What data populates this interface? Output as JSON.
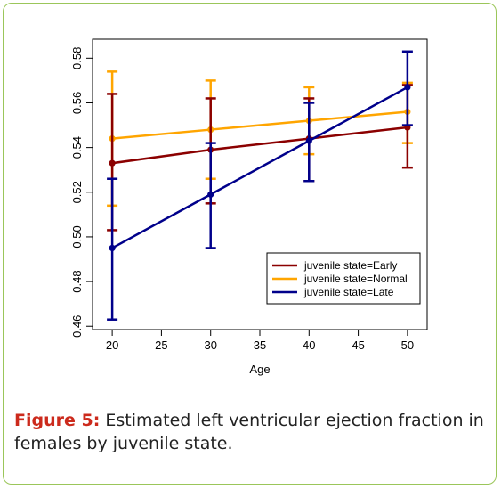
{
  "caption": {
    "label": "Figure 5:",
    "text": " Estimated left ventricular ejection fraction in females by juvenile state."
  },
  "chart_data": {
    "type": "line",
    "xlabel": "Age",
    "ylabel": "",
    "x": [
      20,
      30,
      40,
      50
    ],
    "xticks": [
      20,
      25,
      30,
      35,
      40,
      45,
      50
    ],
    "yticks": [
      0.46,
      0.48,
      0.5,
      0.52,
      0.54,
      0.56,
      0.58
    ],
    "ytick_labels": [
      "0.46",
      "0.48",
      "0.50",
      "0.52",
      "0.54",
      "0.56",
      "0.58"
    ],
    "xlim": [
      18,
      52
    ],
    "ylim": [
      0.4585,
      0.5885
    ],
    "error_bars": true,
    "grid": false,
    "legend_position": "bottom-right",
    "series": [
      {
        "name": "juvenile state=Normal",
        "color": "#FFA500",
        "values": [
          0.544,
          0.548,
          0.552,
          0.556
        ],
        "lower": [
          0.514,
          0.526,
          0.537,
          0.542
        ],
        "upper": [
          0.574,
          0.57,
          0.567,
          0.569
        ]
      },
      {
        "name": "juvenile state=Early",
        "color": "#8B0000",
        "values": [
          0.533,
          0.539,
          0.544,
          0.549
        ],
        "lower": [
          0.503,
          0.515,
          0.525,
          0.531
        ],
        "upper": [
          0.564,
          0.562,
          0.562,
          0.568
        ]
      },
      {
        "name": "juvenile state=Late",
        "color": "#00008B",
        "values": [
          0.495,
          0.519,
          0.543,
          0.567
        ],
        "lower": [
          0.463,
          0.495,
          0.525,
          0.55
        ],
        "upper": [
          0.526,
          0.542,
          0.56,
          0.583
        ]
      }
    ],
    "legend_order": [
      1,
      0,
      2
    ]
  }
}
